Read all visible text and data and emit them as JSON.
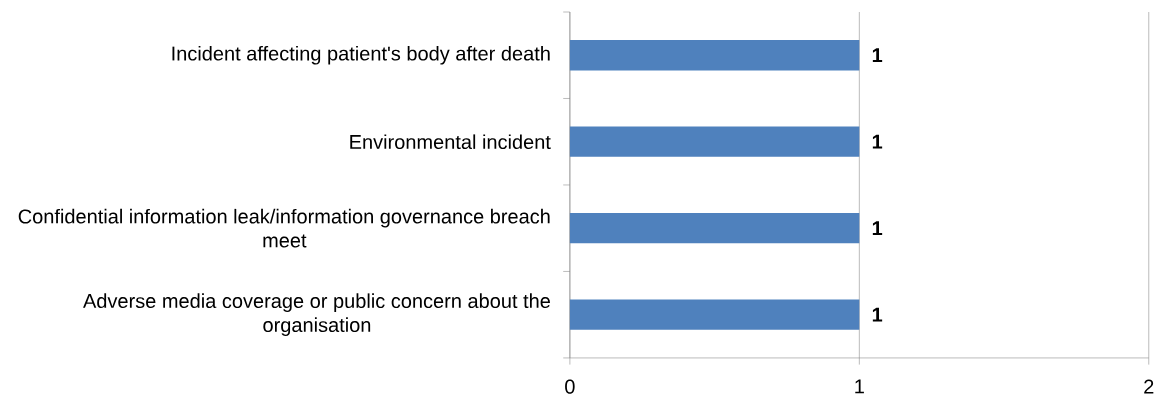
{
  "chart_data": {
    "type": "bar",
    "orientation": "horizontal",
    "categories": [
      "Incident affecting patient's body after death",
      "Environmental incident",
      "Confidential information leak/information governance breach meet",
      "Adverse media coverage or public concern about the organisation"
    ],
    "values": [
      1,
      1,
      1,
      1
    ],
    "color": "#4f81bd",
    "xlim": [
      0,
      2
    ],
    "xticks": [
      0,
      1,
      2
    ],
    "grid": "x",
    "data_labels": true
  }
}
